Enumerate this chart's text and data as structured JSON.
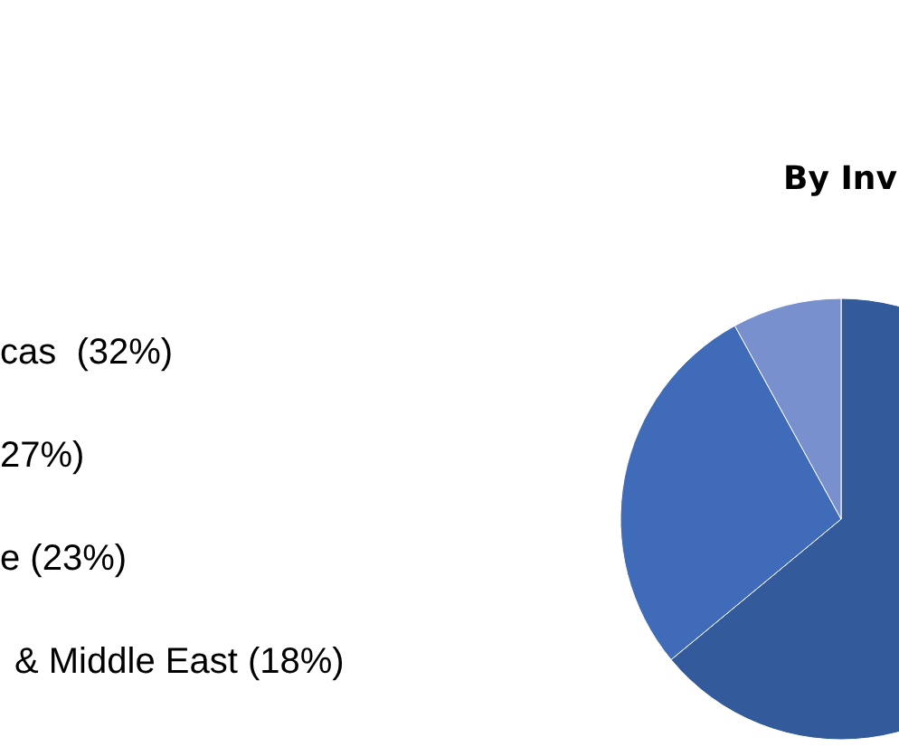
{
  "chart_data": {
    "type": "pie",
    "title": "By Inv",
    "categories": [
      null,
      null,
      null
    ],
    "values": [
      64,
      28,
      8
    ],
    "colors": [
      "#335a9a",
      "#3f6bb8",
      "#7891ce"
    ],
    "legend": false,
    "annotations": [
      "cas  (32%)",
      "27%)",
      "e (23%)",
      "& Middle East (18%)"
    ]
  }
}
